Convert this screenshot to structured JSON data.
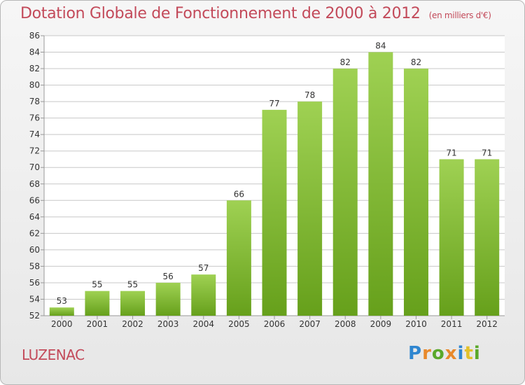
{
  "header": {
    "title": "Dotation Globale de Fonctionnement de 2000 à 2012",
    "units": "(en milliers d'€)"
  },
  "footer": {
    "place": "LUZENAC",
    "logo": "Proxiti"
  },
  "colors": {
    "title": "#c34a5a",
    "bar_light": "#9fd153",
    "bar_dark": "#66a01b",
    "grid": "#c8c8c8"
  },
  "chart_data": {
    "type": "bar",
    "categories": [
      "2000",
      "2001",
      "2002",
      "2003",
      "2004",
      "2005",
      "2006",
      "2007",
      "2008",
      "2009",
      "2010",
      "2011",
      "2012"
    ],
    "values": [
      53,
      55,
      55,
      56,
      57,
      66,
      77,
      78,
      82,
      84,
      82,
      71,
      71
    ],
    "title": "Dotation Globale de Fonctionnement de 2000 à 2012",
    "subtitle": "(en milliers d'€)",
    "xlabel": "",
    "ylabel": "",
    "ylim": [
      52,
      86
    ],
    "yticks": [
      52,
      54,
      56,
      58,
      60,
      62,
      64,
      66,
      68,
      70,
      72,
      74,
      76,
      78,
      80,
      82,
      84,
      86
    ],
    "grid": true,
    "legend": "none"
  }
}
